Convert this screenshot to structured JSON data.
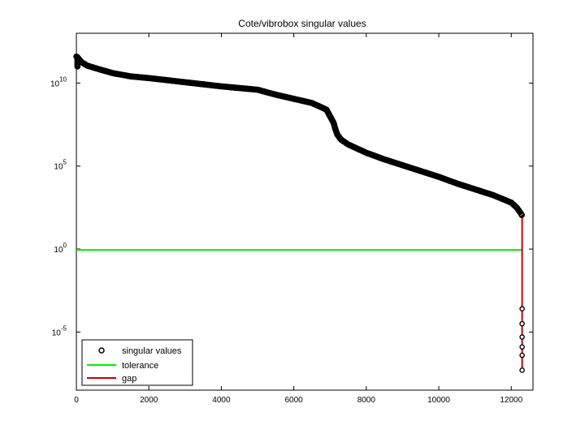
{
  "chart_data": {
    "type": "scatter",
    "title": "Cote/vibrobox singular values",
    "xlabel": "",
    "ylabel": "",
    "xlim": [
      0,
      12600
    ],
    "ylim_log10": [
      -8.5,
      13
    ],
    "yscale": "log",
    "x_ticks": [
      0,
      2000,
      4000,
      6000,
      8000,
      10000,
      12000
    ],
    "x_tick_labels": [
      "0",
      "2000",
      "4000",
      "6000",
      "8000",
      "10000",
      "12000"
    ],
    "y_ticks_log10": [
      10,
      5,
      0,
      -5
    ],
    "y_tick_labels": [
      {
        "base": "10",
        "exp": "10"
      },
      {
        "base": "10",
        "exp": "5"
      },
      {
        "base": "10",
        "exp": "0"
      },
      {
        "base": "10",
        "exp": "-5"
      }
    ],
    "grid": false,
    "legend_position": "bottom-left",
    "series": [
      {
        "name": "singular values",
        "marker": "circle",
        "color": "#000000",
        "curve_log10": [
          [
            0,
            11.6
          ],
          [
            50,
            11.5
          ],
          [
            150,
            11.25
          ],
          [
            300,
            11.05
          ],
          [
            600,
            10.85
          ],
          [
            1000,
            10.6
          ],
          [
            1500,
            10.4
          ],
          [
            2000,
            10.3
          ],
          [
            3000,
            10.05
          ],
          [
            4000,
            9.8
          ],
          [
            5000,
            9.6
          ],
          [
            5500,
            9.3
          ],
          [
            6000,
            9.05
          ],
          [
            6500,
            8.8
          ],
          [
            6900,
            8.4
          ],
          [
            7000,
            8.0
          ],
          [
            7100,
            7.6
          ],
          [
            7150,
            7.2
          ],
          [
            7200,
            6.9
          ],
          [
            7300,
            6.6
          ],
          [
            7500,
            6.3
          ],
          [
            8000,
            5.8
          ],
          [
            8500,
            5.4
          ],
          [
            9000,
            5.05
          ],
          [
            9500,
            4.7
          ],
          [
            10000,
            4.35
          ],
          [
            10500,
            3.95
          ],
          [
            11000,
            3.6
          ],
          [
            11500,
            3.25
          ],
          [
            12000,
            2.8
          ],
          [
            12150,
            2.5
          ],
          [
            12250,
            2.2
          ],
          [
            12290,
            2.05
          ]
        ],
        "tail_points": [
          {
            "x": 12300,
            "y_log10": -3.6
          },
          {
            "x": 12300,
            "y_log10": -4.5
          },
          {
            "x": 12300,
            "y_log10": -5.3
          },
          {
            "x": 12300,
            "y_log10": -5.9
          },
          {
            "x": 12300,
            "y_log10": -6.4
          },
          {
            "x": 12300,
            "y_log10": -7.3
          }
        ]
      },
      {
        "name": "tolerance",
        "line": true,
        "color": "#00ee00",
        "x": [
          0,
          12300
        ],
        "y_log10": [
          -0.05,
          -0.05
        ]
      },
      {
        "name": "gap",
        "line": true,
        "color": "#cc0000",
        "x": [
          12300,
          12300
        ],
        "y_log10": [
          2.05,
          -7.3
        ]
      }
    ]
  }
}
